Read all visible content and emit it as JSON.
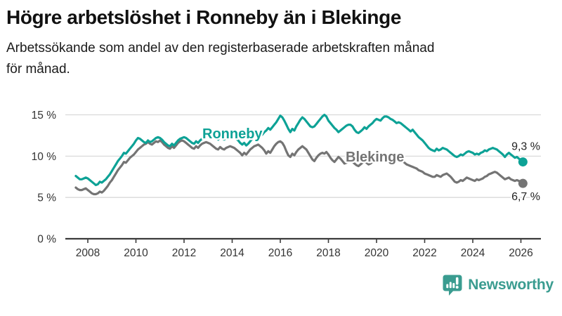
{
  "chart_data": {
    "type": "line",
    "title": "Högre arbetslöshet i Ronneby än i Blekinge",
    "subtitle_line1": "Arbetssökande som andel av den registerbaserade arbetskraften månad",
    "subtitle_line2": "för månad.",
    "unit": "%",
    "grid": "horizontal",
    "legend_position": "inline-labels",
    "xlim": [
      2007.1,
      2026.8
    ],
    "ylim": [
      0,
      15.9
    ],
    "x_start": {
      "year": 2007,
      "month": 7
    },
    "x_end": {
      "year": 2026,
      "month": 2
    },
    "x_step_months": 1,
    "xticks": [
      2008,
      2010,
      2012,
      2014,
      2016,
      2018,
      2020,
      2022,
      2024,
      2026
    ],
    "yticks": [
      {
        "value": 0,
        "label": "0 %"
      },
      {
        "value": 5,
        "label": "5 %"
      },
      {
        "value": 10,
        "label": "10 %"
      },
      {
        "value": 15,
        "label": "15 %"
      }
    ],
    "series": [
      {
        "name": "Ronneby",
        "color": "#0da296",
        "last_value": 9.3,
        "last_value_label": "9,3 %",
        "values": [
          7.6,
          7.4,
          7.2,
          7.2,
          7.3,
          7.4,
          7.3,
          7.1,
          6.9,
          6.7,
          6.5,
          6.6,
          6.9,
          6.8,
          7.0,
          7.2,
          7.5,
          7.8,
          8.2,
          8.6,
          9.0,
          9.4,
          9.7,
          10.0,
          10.4,
          10.3,
          10.6,
          10.9,
          11.2,
          11.5,
          11.9,
          12.2,
          12.1,
          11.9,
          11.7,
          11.6,
          11.9,
          11.7,
          11.8,
          12.0,
          12.2,
          12.3,
          12.2,
          12.0,
          11.7,
          11.5,
          11.3,
          11.2,
          11.5,
          11.3,
          11.6,
          11.9,
          12.1,
          12.2,
          12.3,
          12.2,
          12.0,
          11.8,
          11.6,
          11.5,
          11.8,
          11.6,
          11.9,
          12.1,
          12.3,
          12.5,
          12.7,
          12.8,
          12.6,
          12.4,
          12.2,
          12.0,
          12.3,
          12.1,
          12.0,
          12.2,
          12.4,
          12.5,
          12.4,
          12.3,
          12.1,
          11.9,
          11.6,
          11.4,
          11.6,
          11.3,
          11.5,
          11.8,
          12.1,
          12.4,
          12.6,
          12.9,
          12.8,
          12.6,
          12.9,
          13.1,
          13.4,
          13.2,
          13.5,
          13.8,
          14.1,
          14.5,
          14.9,
          14.7,
          14.3,
          13.8,
          13.3,
          12.9,
          13.3,
          13.1,
          13.6,
          14.0,
          14.4,
          14.7,
          14.5,
          14.2,
          13.9,
          13.6,
          13.5,
          13.6,
          13.9,
          14.2,
          14.5,
          14.8,
          15.0,
          14.8,
          14.3,
          14.0,
          13.7,
          13.4,
          13.2,
          12.9,
          13.1,
          13.3,
          13.5,
          13.7,
          13.8,
          13.8,
          13.6,
          13.2,
          12.9,
          12.8,
          13.0,
          13.2,
          13.5,
          13.3,
          13.6,
          13.8,
          14.0,
          14.3,
          14.5,
          14.4,
          14.3,
          14.6,
          14.8,
          14.8,
          14.7,
          14.5,
          14.4,
          14.2,
          14.0,
          14.1,
          14.0,
          13.8,
          13.6,
          13.4,
          13.2,
          13.0,
          13.2,
          12.9,
          12.6,
          12.3,
          12.1,
          11.9,
          11.6,
          11.3,
          11.0,
          10.8,
          10.7,
          10.6,
          10.9,
          10.7,
          10.8,
          11.0,
          10.9,
          10.8,
          10.6,
          10.4,
          10.2,
          10.0,
          9.9,
          10.0,
          10.2,
          10.1,
          10.3,
          10.5,
          10.6,
          10.5,
          10.4,
          10.2,
          10.3,
          10.2,
          10.4,
          10.5,
          10.7,
          10.6,
          10.8,
          10.9,
          11.0,
          10.9,
          10.8,
          10.6,
          10.4,
          10.2,
          9.9,
          10.2,
          10.4,
          10.2,
          10.0,
          9.8,
          9.9,
          9.7,
          9.5,
          9.3
        ]
      },
      {
        "name": "Blekinge",
        "color": "#747474",
        "last_value": 6.7,
        "last_value_label": "6,7 %",
        "values": [
          6.2,
          6.0,
          5.9,
          5.9,
          6.0,
          6.1,
          5.9,
          5.7,
          5.5,
          5.4,
          5.4,
          5.5,
          5.7,
          5.6,
          5.8,
          6.1,
          6.4,
          6.8,
          7.1,
          7.5,
          7.9,
          8.3,
          8.6,
          8.9,
          9.3,
          9.2,
          9.5,
          9.8,
          10.0,
          10.2,
          10.5,
          10.8,
          11.0,
          11.2,
          11.4,
          11.5,
          11.7,
          11.5,
          11.4,
          11.6,
          11.8,
          11.7,
          11.9,
          11.7,
          11.4,
          11.2,
          11.0,
          10.9,
          11.2,
          11.0,
          11.3,
          11.6,
          11.8,
          11.9,
          11.8,
          11.6,
          11.4,
          11.2,
          11.0,
          10.9,
          11.2,
          11.0,
          11.3,
          11.5,
          11.6,
          11.7,
          11.6,
          11.5,
          11.3,
          11.1,
          10.9,
          10.8,
          11.1,
          10.9,
          10.8,
          11.0,
          11.1,
          11.2,
          11.1,
          11.0,
          10.8,
          10.6,
          10.4,
          10.1,
          10.4,
          10.2,
          10.5,
          10.8,
          11.0,
          11.2,
          11.3,
          11.4,
          11.2,
          11.0,
          10.7,
          10.3,
          10.6,
          10.4,
          10.8,
          11.2,
          11.5,
          11.7,
          11.8,
          11.6,
          11.2,
          10.6,
          10.1,
          9.9,
          10.3,
          10.1,
          10.5,
          10.8,
          11.0,
          11.2,
          11.0,
          10.8,
          10.4,
          10.0,
          9.6,
          9.4,
          9.8,
          10.1,
          10.3,
          10.4,
          10.3,
          10.5,
          10.2,
          9.8,
          9.5,
          9.3,
          9.6,
          9.9,
          9.7,
          9.4,
          9.1,
          9.2,
          9.4,
          9.5,
          9.3,
          9.1,
          8.9,
          8.8,
          9.0,
          9.2,
          9.4,
          9.2,
          9.0,
          9.1,
          9.3,
          9.5,
          9.4,
          9.3,
          9.5,
          9.7,
          9.9,
          10.0,
          9.9,
          9.8,
          9.6,
          9.5,
          9.4,
          9.4,
          9.5,
          9.4,
          9.2,
          9.0,
          8.9,
          8.8,
          8.7,
          8.6,
          8.5,
          8.3,
          8.2,
          8.1,
          7.9,
          7.8,
          7.7,
          7.6,
          7.5,
          7.5,
          7.7,
          7.6,
          7.5,
          7.7,
          7.8,
          7.9,
          7.7,
          7.5,
          7.2,
          6.9,
          6.8,
          6.9,
          7.1,
          7.0,
          7.2,
          7.4,
          7.3,
          7.2,
          7.1,
          7.0,
          7.2,
          7.1,
          7.2,
          7.3,
          7.5,
          7.6,
          7.8,
          7.9,
          8.0,
          8.1,
          8.0,
          7.8,
          7.6,
          7.4,
          7.2,
          7.3,
          7.4,
          7.2,
          7.1,
          7.0,
          7.1,
          7.0,
          6.9,
          6.7
        ]
      }
    ]
  },
  "footer": {
    "brand": "Newsworthy",
    "brand_color": "#3a9c90",
    "logo_icon": "speech-bubble-bar-chart"
  }
}
